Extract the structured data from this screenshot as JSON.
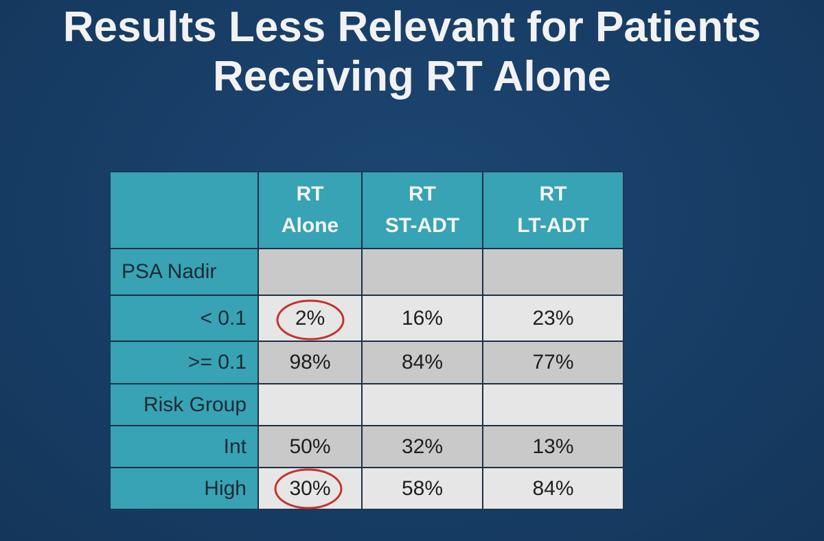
{
  "title": {
    "lines": [
      "Results Less Relevant for Patients",
      "Receiving RT Alone"
    ]
  },
  "table": {
    "columns": [
      [
        "RT",
        "Alone"
      ],
      [
        "RT",
        "ST-ADT"
      ],
      [
        "RT",
        "LT-ADT"
      ]
    ],
    "rows": [
      {
        "label": "PSA Nadir"
      },
      {
        "label": "< 0.1",
        "cells": [
          "2%",
          "16%",
          "23%"
        ]
      },
      {
        "label": ">= 0.1",
        "cells": [
          "98%",
          "84%",
          "77%"
        ]
      },
      {
        "label": "Risk Group"
      },
      {
        "label": "Int",
        "cells": [
          "50%",
          "32%",
          "13%"
        ]
      },
      {
        "label": "High",
        "cells": [
          "30%",
          "58%",
          "84%"
        ]
      }
    ]
  }
}
